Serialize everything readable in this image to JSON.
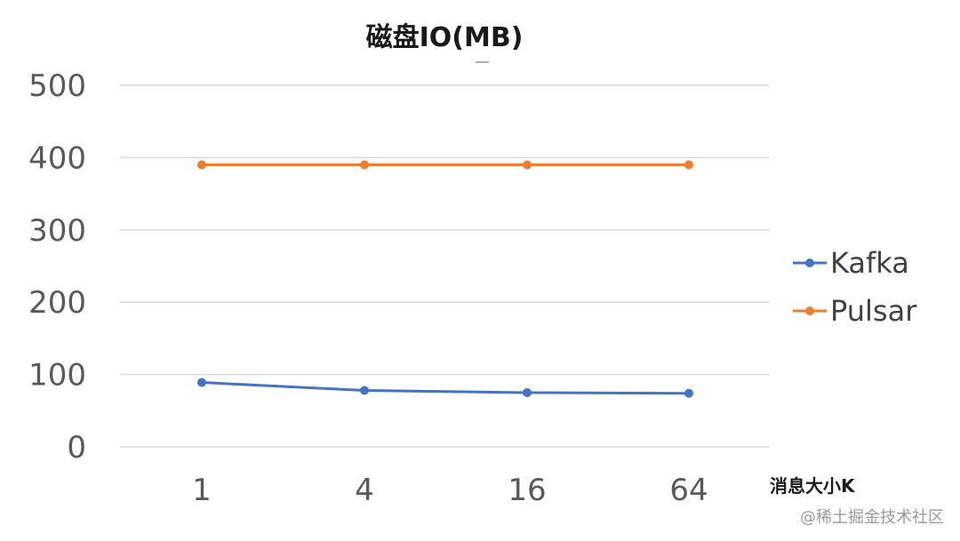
{
  "chart_data": {
    "type": "line",
    "title": "磁盘IO(MB)",
    "xlabel": "消息大小K",
    "ylabel": "",
    "categories": [
      "1",
      "4",
      "16",
      "64"
    ],
    "ylim": [
      0,
      500
    ],
    "yticks": [
      0,
      100,
      200,
      300,
      400,
      500
    ],
    "grid": true,
    "legend_position": "right",
    "series": [
      {
        "name": "Kafka",
        "color": "#4472C4",
        "values": [
          89,
          78,
          75,
          74
        ]
      },
      {
        "name": "Pulsar",
        "color": "#ED7D31",
        "values": [
          390,
          390,
          390,
          390
        ]
      }
    ]
  },
  "watermark": "@稀土掘金技术社区"
}
